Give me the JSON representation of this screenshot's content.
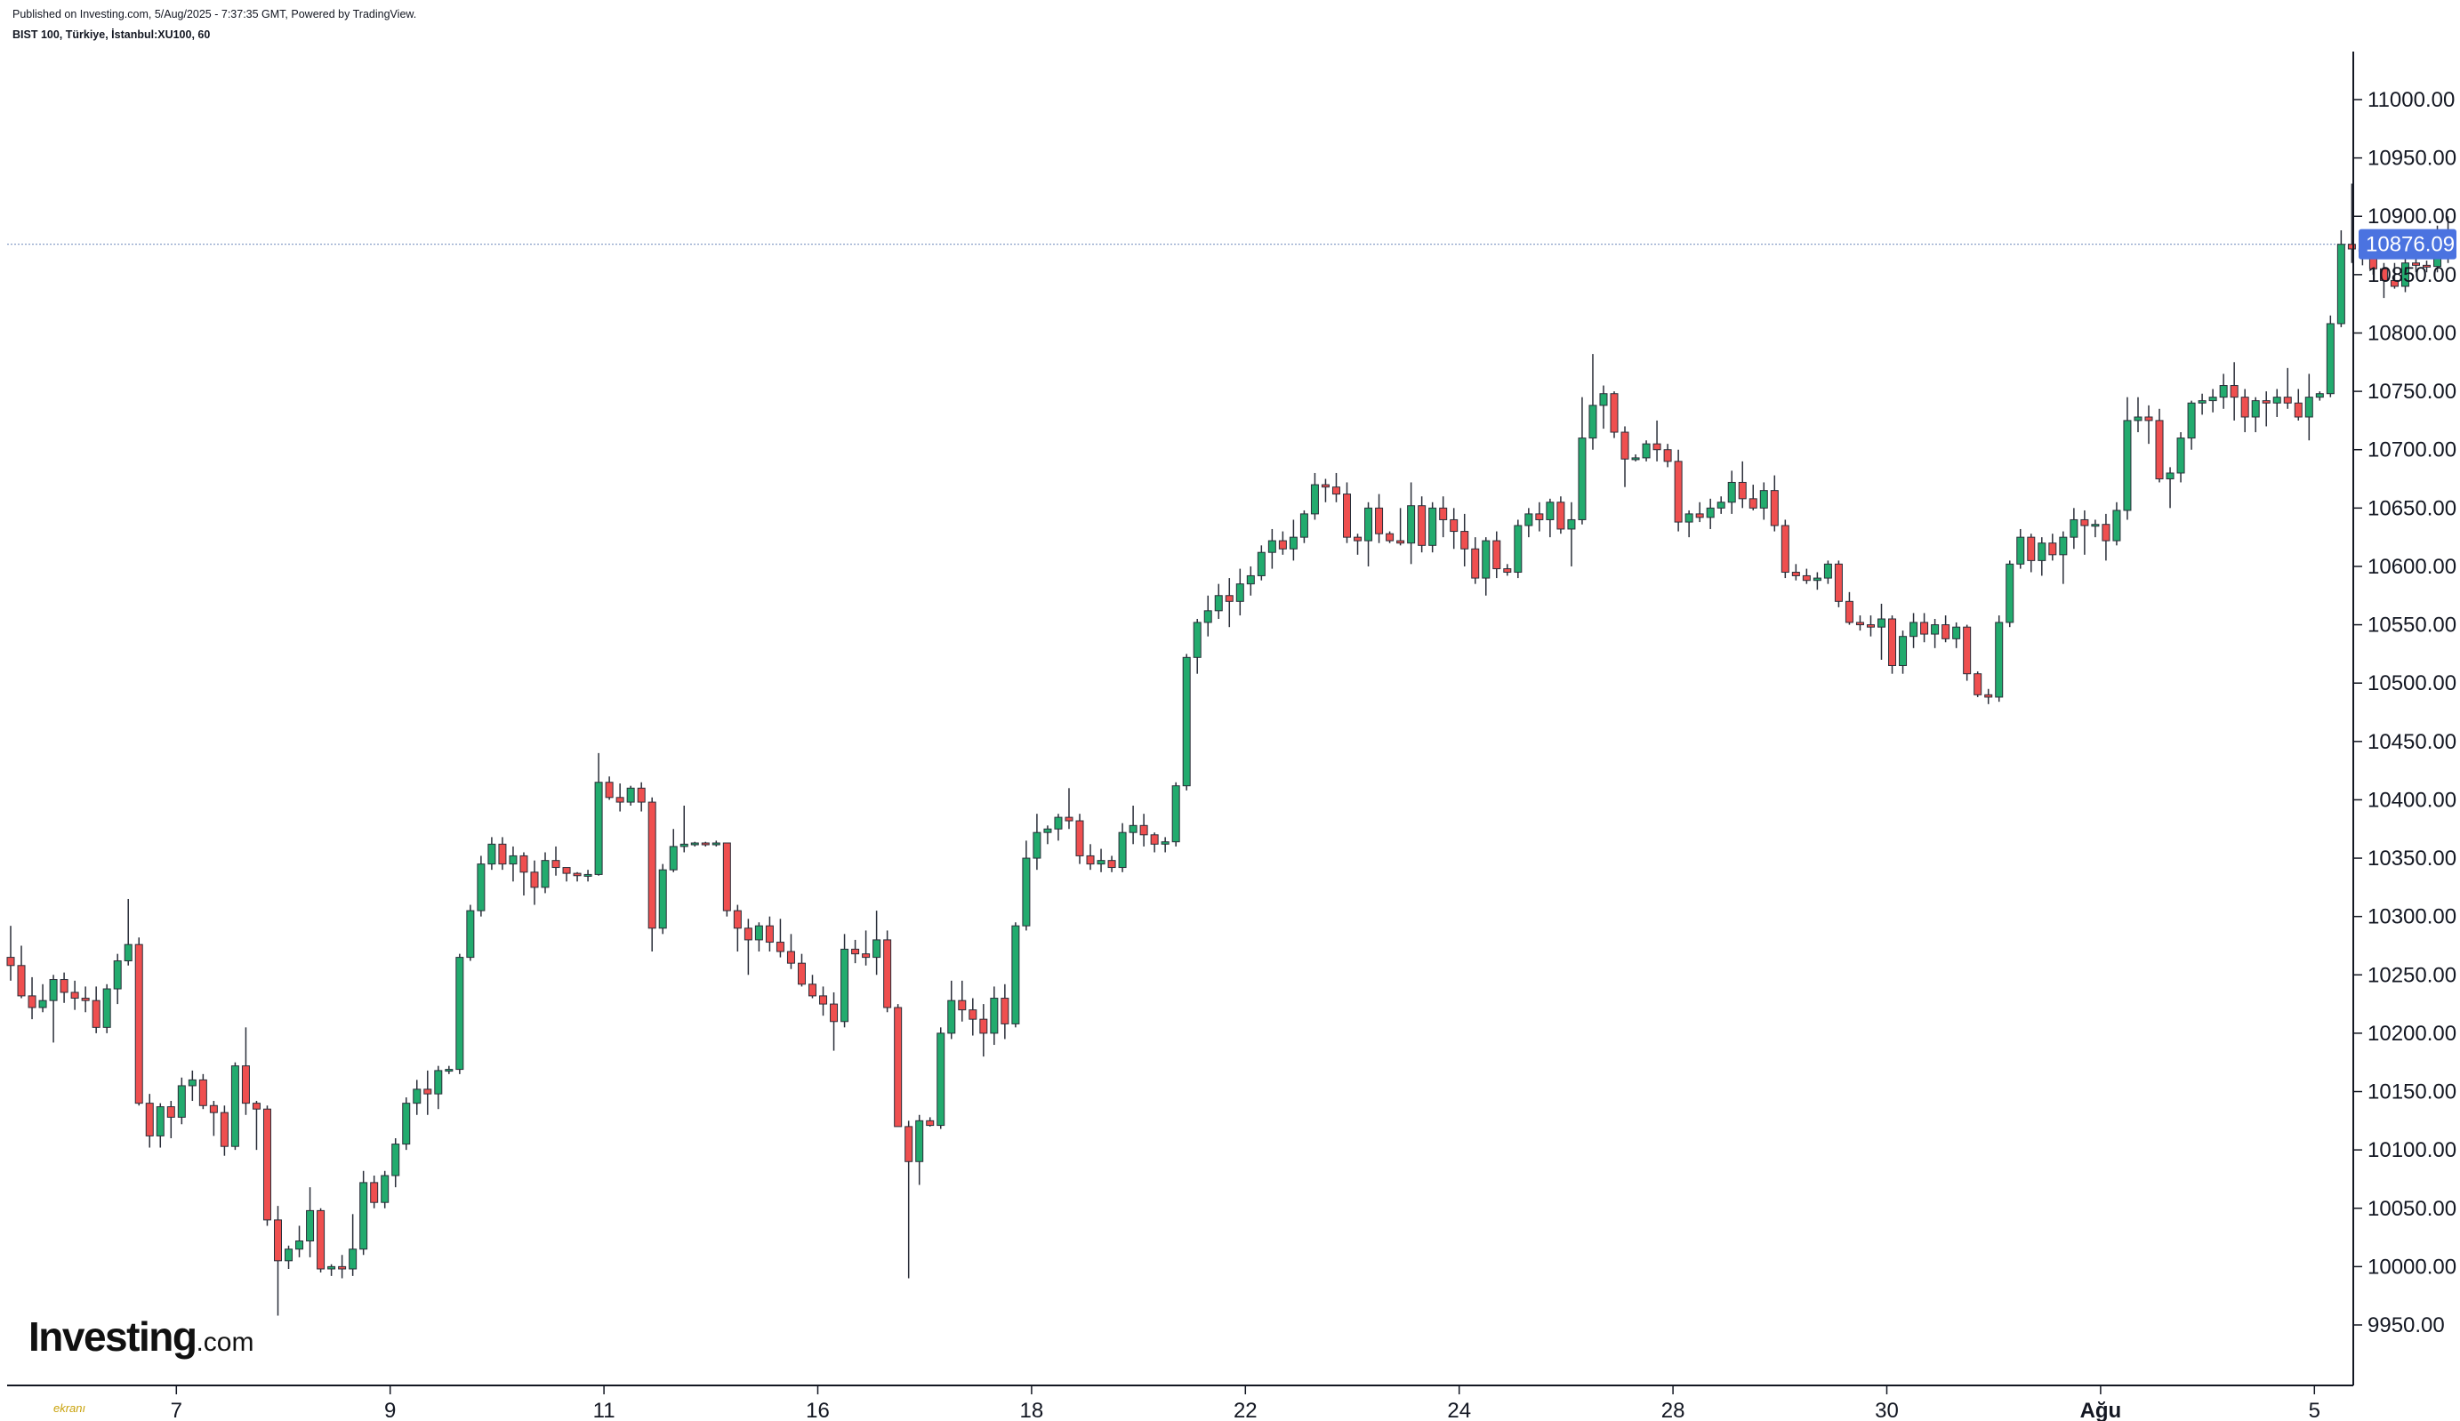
{
  "header": {
    "published": "Published on Investing.com, 5/Aug/2025 - 7:37:35 GMT, Powered by TradingView.",
    "symbol": "BIST 100, Türkiye, İstanbul:XU100, 60"
  },
  "logo": {
    "main": "Investing",
    "suffix": ".com"
  },
  "watermark": "ekranı",
  "colors": {
    "up": "#22ab6e",
    "down": "#ef4f4f",
    "wick": "#2a2e39",
    "price_line": "#8aa0c8",
    "last_label_bg": "#4b73e0",
    "axis": "#131722"
  },
  "chart_data": {
    "type": "candlestick",
    "title": "",
    "xlabel": "",
    "ylabel": "",
    "ylim": [
      9900,
      11050
    ],
    "y_ticks": [
      "9950.00",
      "10000.00",
      "10050.00",
      "10100.00",
      "10150.00",
      "10200.00",
      "10250.00",
      "10300.00",
      "10350.00",
      "10400.00",
      "10450.00",
      "10500.00",
      "10550.00",
      "10600.00",
      "10650.00",
      "10700.00",
      "10750.00",
      "10800.00",
      "10850.00",
      "10900.00",
      "10950.00",
      "11000.00"
    ],
    "x_ticks": [
      {
        "label": "7",
        "bar": 15,
        "bold": false
      },
      {
        "label": "9",
        "bar": 35,
        "bold": false
      },
      {
        "label": "11",
        "bar": 55,
        "bold": false
      },
      {
        "label": "16",
        "bar": 75,
        "bold": false
      },
      {
        "label": "18",
        "bar": 95,
        "bold": false
      },
      {
        "label": "22",
        "bar": 115,
        "bold": false
      },
      {
        "label": "24",
        "bar": 135,
        "bold": false
      },
      {
        "label": "28",
        "bar": 155,
        "bold": false
      },
      {
        "label": "30",
        "bar": 175,
        "bold": false
      },
      {
        "label": "Ağu",
        "bar": 195,
        "bold": true
      },
      {
        "label": "5",
        "bar": 215,
        "bold": false
      }
    ],
    "last_price": "10876.09",
    "last_value": 10876.09,
    "candles": [
      [
        10265,
        10292,
        10245,
        10258
      ],
      [
        10258,
        10275,
        10230,
        10232
      ],
      [
        10232,
        10248,
        10212,
        10222
      ],
      [
        10222,
        10242,
        10218,
        10228
      ],
      [
        10228,
        10250,
        10192,
        10246
      ],
      [
        10246,
        10252,
        10226,
        10235
      ],
      [
        10235,
        10245,
        10220,
        10230
      ],
      [
        10230,
        10240,
        10218,
        10228
      ],
      [
        10228,
        10240,
        10200,
        10205
      ],
      [
        10205,
        10242,
        10200,
        10238
      ],
      [
        10238,
        10268,
        10225,
        10262
      ],
      [
        10262,
        10315,
        10258,
        10276
      ],
      [
        10276,
        10282,
        10138,
        10140
      ],
      [
        10140,
        10148,
        10102,
        10112
      ],
      [
        10112,
        10140,
        10102,
        10137
      ],
      [
        10137,
        10142,
        10110,
        10128
      ],
      [
        10128,
        10162,
        10122,
        10155
      ],
      [
        10155,
        10168,
        10142,
        10160
      ],
      [
        10160,
        10165,
        10135,
        10138
      ],
      [
        10138,
        10142,
        10112,
        10132
      ],
      [
        10132,
        10138,
        10095,
        10103
      ],
      [
        10103,
        10175,
        10100,
        10172
      ],
      [
        10172,
        10205,
        10130,
        10140
      ],
      [
        10140,
        10142,
        10100,
        10135
      ],
      [
        10135,
        10138,
        10035,
        10040
      ],
      [
        10040,
        10052,
        9958,
        10005
      ],
      [
        10005,
        10018,
        9998,
        10015
      ],
      [
        10015,
        10035,
        10008,
        10022
      ],
      [
        10022,
        10068,
        10008,
        10048
      ],
      [
        10048,
        10050,
        9995,
        9998
      ],
      [
        9998,
        10002,
        9992,
        10000
      ],
      [
        10000,
        10010,
        9990,
        9998
      ],
      [
        9998,
        10045,
        9992,
        10015
      ],
      [
        10015,
        10082,
        10010,
        10072
      ],
      [
        10072,
        10078,
        10050,
        10055
      ],
      [
        10055,
        10082,
        10050,
        10078
      ],
      [
        10078,
        10110,
        10068,
        10105
      ],
      [
        10105,
        10145,
        10100,
        10140
      ],
      [
        10140,
        10160,
        10130,
        10152
      ],
      [
        10152,
        10168,
        10130,
        10148
      ],
      [
        10148,
        10172,
        10135,
        10168
      ],
      [
        10168,
        10172,
        10165,
        10169
      ],
      [
        10169,
        10268,
        10165,
        10265
      ],
      [
        10265,
        10310,
        10262,
        10305
      ],
      [
        10305,
        10352,
        10300,
        10345
      ],
      [
        10345,
        10368,
        10340,
        10362
      ],
      [
        10362,
        10368,
        10340,
        10345
      ],
      [
        10345,
        10360,
        10330,
        10352
      ],
      [
        10352,
        10355,
        10318,
        10338
      ],
      [
        10338,
        10348,
        10310,
        10325
      ],
      [
        10325,
        10355,
        10320,
        10348
      ],
      [
        10348,
        10360,
        10335,
        10342
      ],
      [
        10342,
        10342,
        10330,
        10337
      ],
      [
        10337,
        10338,
        10330,
        10335
      ],
      [
        10335,
        10340,
        10330,
        10336
      ],
      [
        10336,
        10440,
        10335,
        10415
      ],
      [
        10415,
        10420,
        10400,
        10402
      ],
      [
        10402,
        10414,
        10390,
        10398
      ],
      [
        10398,
        10412,
        10395,
        10410
      ],
      [
        10410,
        10415,
        10390,
        10398
      ],
      [
        10398,
        10402,
        10270,
        10290
      ],
      [
        10290,
        10345,
        10285,
        10340
      ],
      [
        10340,
        10375,
        10338,
        10360
      ],
      [
        10360,
        10395,
        10355,
        10362
      ],
      [
        10362,
        10364,
        10360,
        10363
      ],
      [
        10363,
        10364,
        10360,
        10362
      ],
      [
        10362,
        10365,
        10360,
        10363
      ],
      [
        10363,
        10363,
        10300,
        10305
      ],
      [
        10305,
        10310,
        10270,
        10290
      ],
      [
        10290,
        10298,
        10250,
        10280
      ],
      [
        10280,
        10295,
        10270,
        10292
      ],
      [
        10292,
        10300,
        10270,
        10278
      ],
      [
        10278,
        10298,
        10265,
        10270
      ],
      [
        10270,
        10285,
        10255,
        10260
      ],
      [
        10260,
        10268,
        10240,
        10242
      ],
      [
        10242,
        10250,
        10230,
        10232
      ],
      [
        10232,
        10240,
        10215,
        10225
      ],
      [
        10225,
        10235,
        10185,
        10210
      ],
      [
        10210,
        10285,
        10205,
        10272
      ],
      [
        10272,
        10280,
        10260,
        10268
      ],
      [
        10268,
        10288,
        10258,
        10265
      ],
      [
        10265,
        10305,
        10250,
        10280
      ],
      [
        10280,
        10288,
        10218,
        10222
      ],
      [
        10222,
        10225,
        10120,
        10120
      ],
      [
        10120,
        10125,
        9990,
        10090
      ],
      [
        10090,
        10130,
        10070,
        10125
      ],
      [
        10125,
        10128,
        10120,
        10121
      ],
      [
        10121,
        10205,
        10118,
        10200
      ],
      [
        10200,
        10245,
        10195,
        10228
      ],
      [
        10228,
        10245,
        10210,
        10220
      ],
      [
        10220,
        10230,
        10198,
        10212
      ],
      [
        10212,
        10225,
        10180,
        10200
      ],
      [
        10200,
        10240,
        10190,
        10230
      ],
      [
        10230,
        10242,
        10195,
        10208
      ],
      [
        10208,
        10295,
        10205,
        10292
      ],
      [
        10292,
        10365,
        10288,
        10350
      ],
      [
        10350,
        10388,
        10340,
        10372
      ],
      [
        10372,
        10378,
        10362,
        10375
      ],
      [
        10375,
        10388,
        10365,
        10385
      ],
      [
        10385,
        10410,
        10375,
        10382
      ],
      [
        10382,
        10388,
        10345,
        10352
      ],
      [
        10352,
        10362,
        10340,
        10345
      ],
      [
        10345,
        10358,
        10338,
        10348
      ],
      [
        10348,
        10352,
        10338,
        10342
      ],
      [
        10342,
        10380,
        10338,
        10372
      ],
      [
        10372,
        10395,
        10362,
        10378
      ],
      [
        10378,
        10388,
        10360,
        10370
      ],
      [
        10370,
        10372,
        10355,
        10362
      ],
      [
        10362,
        10368,
        10355,
        10364
      ],
      [
        10364,
        10415,
        10360,
        10412
      ],
      [
        10412,
        10525,
        10408,
        10522
      ],
      [
        10522,
        10555,
        10508,
        10552
      ],
      [
        10552,
        10575,
        10540,
        10562
      ],
      [
        10562,
        10585,
        10555,
        10575
      ],
      [
        10575,
        10590,
        10548,
        10570
      ],
      [
        10570,
        10598,
        10558,
        10585
      ],
      [
        10585,
        10600,
        10575,
        10592
      ],
      [
        10592,
        10618,
        10588,
        10612
      ],
      [
        10612,
        10632,
        10598,
        10622
      ],
      [
        10622,
        10630,
        10610,
        10615
      ],
      [
        10615,
        10640,
        10605,
        10625
      ],
      [
        10625,
        10648,
        10620,
        10645
      ],
      [
        10645,
        10680,
        10640,
        10670
      ],
      [
        10670,
        10675,
        10655,
        10668
      ],
      [
        10668,
        10680,
        10655,
        10662
      ],
      [
        10662,
        10672,
        10620,
        10625
      ],
      [
        10625,
        10628,
        10610,
        10622
      ],
      [
        10622,
        10655,
        10600,
        10650
      ],
      [
        10650,
        10662,
        10620,
        10628
      ],
      [
        10628,
        10630,
        10620,
        10622
      ],
      [
        10622,
        10650,
        10618,
        10620
      ],
      [
        10620,
        10672,
        10602,
        10652
      ],
      [
        10652,
        10660,
        10612,
        10618
      ],
      [
        10618,
        10655,
        10612,
        10650
      ],
      [
        10650,
        10660,
        10625,
        10640
      ],
      [
        10640,
        10650,
        10615,
        10630
      ],
      [
        10630,
        10645,
        10600,
        10615
      ],
      [
        10615,
        10625,
        10585,
        10590
      ],
      [
        10590,
        10625,
        10575,
        10622
      ],
      [
        10622,
        10630,
        10590,
        10598
      ],
      [
        10598,
        10602,
        10592,
        10595
      ],
      [
        10595,
        10640,
        10590,
        10635
      ],
      [
        10635,
        10650,
        10625,
        10645
      ],
      [
        10645,
        10655,
        10630,
        10640
      ],
      [
        10640,
        10658,
        10625,
        10655
      ],
      [
        10655,
        10660,
        10628,
        10632
      ],
      [
        10632,
        10655,
        10600,
        10640
      ],
      [
        10640,
        10745,
        10636,
        10710
      ],
      [
        10710,
        10782,
        10700,
        10738
      ],
      [
        10738,
        10755,
        10718,
        10748
      ],
      [
        10748,
        10750,
        10710,
        10715
      ],
      [
        10715,
        10720,
        10668,
        10692
      ],
      [
        10692,
        10696,
        10690,
        10693
      ],
      [
        10693,
        10708,
        10690,
        10705
      ],
      [
        10705,
        10725,
        10690,
        10700
      ],
      [
        10700,
        10705,
        10685,
        10690
      ],
      [
        10690,
        10700,
        10630,
        10638
      ],
      [
        10638,
        10648,
        10625,
        10645
      ],
      [
        10645,
        10655,
        10638,
        10642
      ],
      [
        10642,
        10658,
        10632,
        10650
      ],
      [
        10650,
        10660,
        10645,
        10655
      ],
      [
        10655,
        10682,
        10645,
        10672
      ],
      [
        10672,
        10690,
        10650,
        10658
      ],
      [
        10658,
        10670,
        10648,
        10650
      ],
      [
        10650,
        10672,
        10640,
        10665
      ],
      [
        10665,
        10678,
        10630,
        10635
      ],
      [
        10635,
        10640,
        10590,
        10595
      ],
      [
        10595,
        10602,
        10588,
        10592
      ],
      [
        10592,
        10598,
        10585,
        10588
      ],
      [
        10588,
        10595,
        10580,
        10590
      ],
      [
        10590,
        10605,
        10585,
        10602
      ],
      [
        10602,
        10605,
        10565,
        10570
      ],
      [
        10570,
        10578,
        10550,
        10552
      ],
      [
        10552,
        10558,
        10545,
        10550
      ],
      [
        10550,
        10558,
        10540,
        10548
      ],
      [
        10548,
        10568,
        10520,
        10555
      ],
      [
        10555,
        10558,
        10508,
        10515
      ],
      [
        10515,
        10545,
        10508,
        10540
      ],
      [
        10540,
        10560,
        10530,
        10552
      ],
      [
        10552,
        10560,
        10535,
        10542
      ],
      [
        10542,
        10555,
        10530,
        10550
      ],
      [
        10550,
        10558,
        10535,
        10538
      ],
      [
        10538,
        10552,
        10530,
        10548
      ],
      [
        10548,
        10550,
        10502,
        10508
      ],
      [
        10508,
        10510,
        10488,
        10490
      ],
      [
        10490,
        10495,
        10482,
        10488
      ],
      [
        10488,
        10558,
        10484,
        10552
      ],
      [
        10552,
        10605,
        10548,
        10602
      ],
      [
        10602,
        10632,
        10598,
        10625
      ],
      [
        10625,
        10628,
        10595,
        10605
      ],
      [
        10605,
        10625,
        10592,
        10620
      ],
      [
        10620,
        10628,
        10605,
        10610
      ],
      [
        10610,
        10630,
        10585,
        10625
      ],
      [
        10625,
        10650,
        10615,
        10640
      ],
      [
        10640,
        10648,
        10610,
        10635
      ],
      [
        10635,
        10640,
        10625,
        10636
      ],
      [
        10636,
        10645,
        10605,
        10622
      ],
      [
        10622,
        10655,
        10618,
        10648
      ],
      [
        10648,
        10745,
        10640,
        10725
      ],
      [
        10725,
        10745,
        10715,
        10728
      ],
      [
        10728,
        10738,
        10705,
        10725
      ],
      [
        10725,
        10735,
        10672,
        10675
      ],
      [
        10675,
        10685,
        10650,
        10680
      ],
      [
        10680,
        10715,
        10672,
        10710
      ],
      [
        10710,
        10742,
        10700,
        10740
      ],
      [
        10740,
        10748,
        10730,
        10742
      ],
      [
        10742,
        10752,
        10732,
        10745
      ],
      [
        10745,
        10765,
        10735,
        10755
      ],
      [
        10755,
        10775,
        10725,
        10745
      ],
      [
        10745,
        10752,
        10715,
        10728
      ],
      [
        10728,
        10745,
        10715,
        10742
      ],
      [
        10742,
        10750,
        10720,
        10740
      ],
      [
        10740,
        10752,
        10728,
        10745
      ],
      [
        10745,
        10770,
        10735,
        10740
      ],
      [
        10740,
        10752,
        10725,
        10728
      ],
      [
        10728,
        10765,
        10708,
        10745
      ],
      [
        10745,
        10750,
        10742,
        10748
      ],
      [
        10748,
        10815,
        10745,
        10808
      ],
      [
        10808,
        10888,
        10805,
        10876
      ],
      [
        10876,
        10928,
        10860,
        10872
      ],
      [
        10872,
        10882,
        10858,
        10870
      ],
      [
        10870,
        10878,
        10850,
        10855
      ],
      [
        10855,
        10860,
        10830,
        10845
      ],
      [
        10845,
        10860,
        10838,
        10840
      ],
      [
        10840,
        10868,
        10835,
        10860
      ],
      [
        10860,
        10872,
        10852,
        10858
      ],
      [
        10858,
        10862,
        10852,
        10857
      ],
      [
        10857,
        10892,
        10852,
        10886
      ],
      [
        10886,
        10900,
        10860,
        10876
      ]
    ]
  }
}
